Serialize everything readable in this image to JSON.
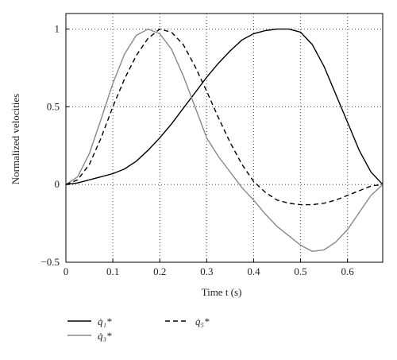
{
  "chart_data": {
    "type": "line",
    "xlabel": "Time t (s)",
    "ylabel": "Normalized velocities",
    "x": [
      0,
      0.025,
      0.05,
      0.075,
      0.1,
      0.125,
      0.15,
      0.175,
      0.2,
      0.225,
      0.25,
      0.275,
      0.3,
      0.325,
      0.35,
      0.375,
      0.4,
      0.425,
      0.45,
      0.475,
      0.5,
      0.525,
      0.55,
      0.575,
      0.6,
      0.625,
      0.65,
      0.675
    ],
    "series": [
      {
        "name": "q̇₁*",
        "color": "#000000",
        "dash": "solid",
        "values": [
          0,
          0.01,
          0.03,
          0.05,
          0.07,
          0.1,
          0.15,
          0.22,
          0.3,
          0.39,
          0.49,
          0.59,
          0.69,
          0.78,
          0.86,
          0.93,
          0.97,
          0.99,
          1,
          1,
          0.98,
          0.9,
          0.76,
          0.58,
          0.4,
          0.22,
          0.08,
          0
        ]
      },
      {
        "name": "q̇₃*",
        "color": "#888888",
        "dash": "solid",
        "values": [
          0,
          0.05,
          0.2,
          0.42,
          0.65,
          0.84,
          0.96,
          1.0,
          0.97,
          0.87,
          0.7,
          0.5,
          0.3,
          0.18,
          0.08,
          -0.02,
          -0.1,
          -0.19,
          -0.27,
          -0.33,
          -0.39,
          -0.43,
          -0.42,
          -0.37,
          -0.29,
          -0.18,
          -0.07,
          0
        ]
      },
      {
        "name": "q̇₅*",
        "color": "#000000",
        "dash": "dashed",
        "values": [
          0,
          0.03,
          0.13,
          0.3,
          0.5,
          0.68,
          0.83,
          0.94,
          1.0,
          0.98,
          0.9,
          0.76,
          0.6,
          0.43,
          0.27,
          0.13,
          0.02,
          -0.05,
          -0.1,
          -0.12,
          -0.13,
          -0.13,
          -0.12,
          -0.1,
          -0.07,
          -0.04,
          -0.01,
          0
        ]
      }
    ],
    "xlim": [
      0,
      0.675
    ],
    "ylim": [
      -0.5,
      1.1
    ],
    "xticks": [
      0,
      0.1,
      0.2,
      0.3,
      0.4,
      0.5,
      0.6
    ],
    "yticks": [
      {
        "value": -0.5,
        "label": "−0.5"
      },
      0,
      0.5,
      1
    ],
    "grid": true
  }
}
